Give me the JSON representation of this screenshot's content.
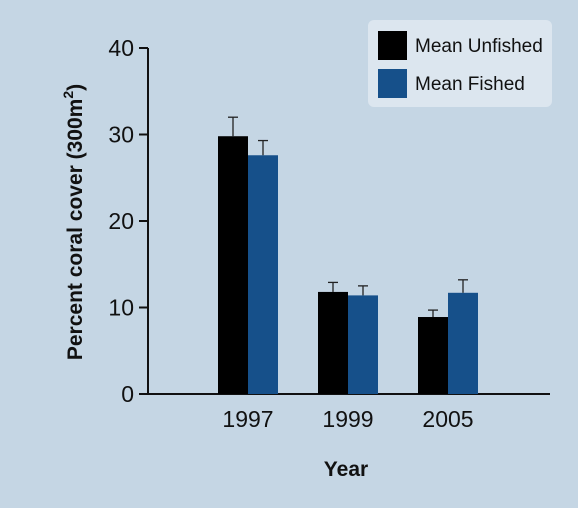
{
  "chart_data": {
    "type": "bar",
    "categories": [
      "1997",
      "1999",
      "2005"
    ],
    "series": [
      {
        "name": "Mean Unfished",
        "color": "#000000",
        "values": [
          29.8,
          11.8,
          8.9
        ],
        "error": [
          2.2,
          1.1,
          0.8
        ]
      },
      {
        "name": "Mean Fished",
        "color": "#16508a",
        "values": [
          27.6,
          11.4,
          11.7
        ],
        "error": [
          1.7,
          1.1,
          1.5
        ]
      }
    ],
    "xlabel": "Year",
    "ylabel_main": "Percent coral cover (300m",
    "ylabel_sup": "2",
    "ylabel_end": ")",
    "ylim": [
      0,
      40
    ],
    "yticks": [
      "0",
      "10",
      "20",
      "30",
      "40"
    ],
    "grid": false,
    "legend_position": "top-right",
    "colors": {
      "background": "#c5d6e4",
      "legend_background": "#dce6ef"
    }
  }
}
